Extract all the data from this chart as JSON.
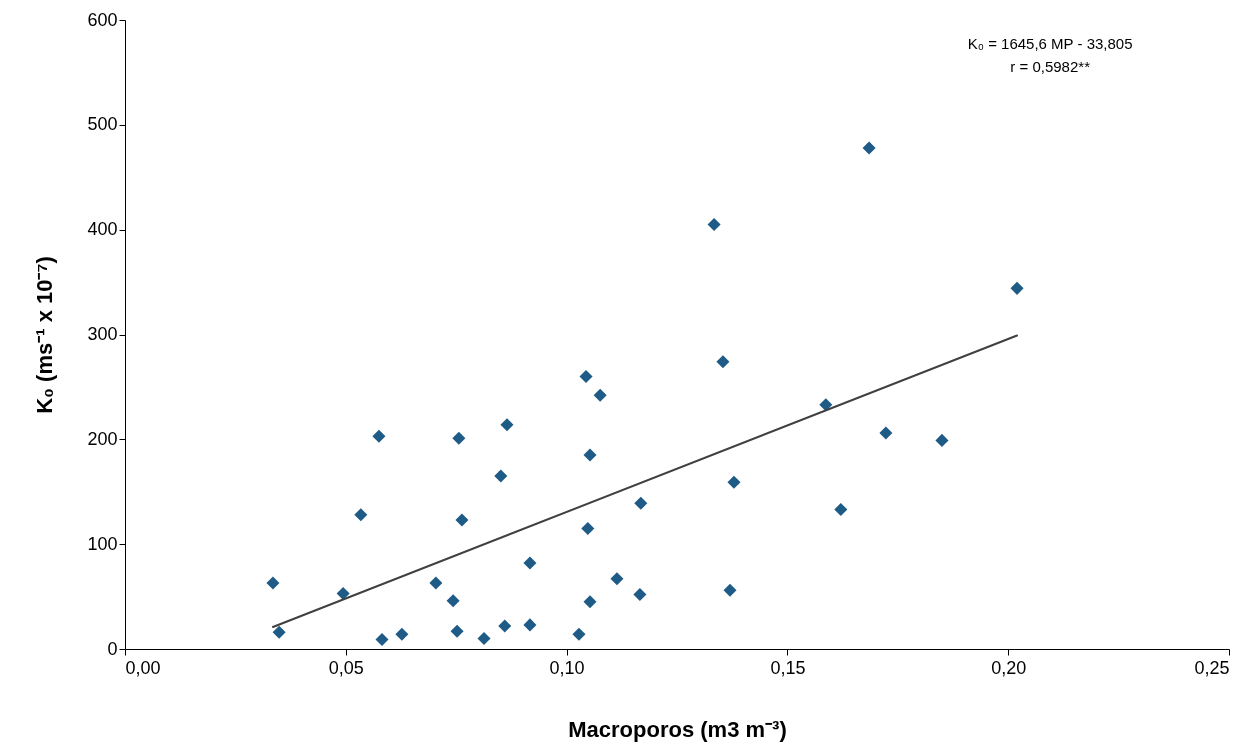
{
  "chart_data": {
    "type": "scatter",
    "xlabel": "Macroporos (m3 m⁻³)",
    "ylabel": "K₀  (ms⁻¹ x 10⁻⁷)",
    "xlim": [
      0,
      0.25
    ],
    "xticks": [
      {
        "value": 0,
        "label": "0,00"
      },
      {
        "value": 0.05,
        "label": "0,05"
      },
      {
        "value": 0.1,
        "label": "0,10"
      },
      {
        "value": 0.15,
        "label": "0,15"
      },
      {
        "value": 0.2,
        "label": "0,20"
      },
      {
        "value": 0.25,
        "label": "0,25"
      }
    ],
    "ylim": [
      0,
      600
    ],
    "yticks": [
      0,
      100,
      200,
      300,
      400,
      500,
      600
    ],
    "annotations": [
      "K₀ = 1645,6 MP - 33,805",
      "r = 0,5982**"
    ],
    "series": [
      {
        "marker": "diamond",
        "color": "#1f5b87",
        "x": [
          0.0335,
          0.0349,
          0.0494,
          0.0534,
          0.0575,
          0.0582,
          0.0627,
          0.0704,
          0.0743,
          0.0752,
          0.0756,
          0.0763,
          0.0813,
          0.0851,
          0.086,
          0.0865,
          0.0917,
          0.0917,
          0.1028,
          0.1044,
          0.1048,
          0.1053,
          0.1053,
          0.1076,
          0.1114,
          0.1166,
          0.1168,
          0.1334,
          0.1354,
          0.137,
          0.1379,
          0.1587,
          0.1621,
          0.1685,
          0.1723,
          0.185,
          0.202
        ],
        "values": [
          63,
          16,
          53,
          128,
          203,
          9,
          14,
          63,
          46,
          17,
          201,
          123,
          10,
          165,
          22,
          214,
          82,
          23,
          14,
          260,
          115,
          185,
          45,
          242,
          67,
          52,
          139,
          405,
          274,
          56,
          159,
          233,
          133,
          478,
          206,
          199,
          344
        ]
      },
      {
        "type": "line",
        "color": "#404040",
        "x": [
          0.0335,
          0.202
        ],
        "values": [
          21,
          299
        ]
      }
    ]
  }
}
